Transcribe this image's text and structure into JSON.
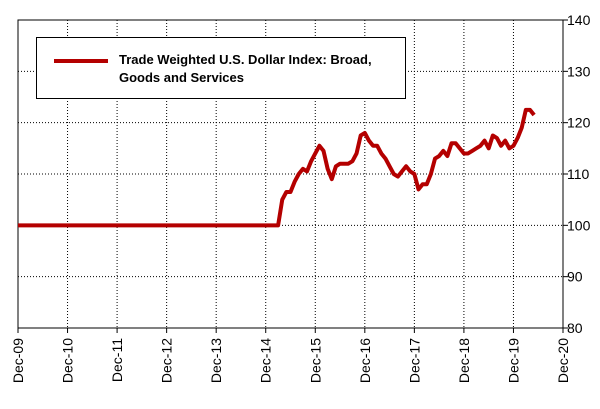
{
  "chart_data": {
    "type": "line",
    "series": [
      {
        "name": "Trade Weighted U.S. Dollar Index: Broad, Goods and Services",
        "color": "#b40000",
        "x": [
          "2009-12",
          "2015-03",
          "2015-04",
          "2015-05",
          "2015-06",
          "2015-07",
          "2015-08",
          "2015-09",
          "2015-10",
          "2015-11",
          "2015-12",
          "2016-01",
          "2016-02",
          "2016-03",
          "2016-04",
          "2016-05",
          "2016-06",
          "2016-07",
          "2016-08",
          "2016-09",
          "2016-10",
          "2016-11",
          "2016-12",
          "2017-01",
          "2017-02",
          "2017-03",
          "2017-04",
          "2017-05",
          "2017-06",
          "2017-07",
          "2017-08",
          "2017-09",
          "2017-10",
          "2017-11",
          "2017-12",
          "2018-01",
          "2018-02",
          "2018-03",
          "2018-04",
          "2018-05",
          "2018-06",
          "2018-07",
          "2018-08",
          "2018-09",
          "2018-10",
          "2018-11",
          "2018-12",
          "2019-01",
          "2019-02",
          "2019-03",
          "2019-04",
          "2019-05",
          "2019-06",
          "2019-07",
          "2019-08",
          "2019-09",
          "2019-10",
          "2019-11",
          "2019-12",
          "2020-01",
          "2020-02",
          "2020-03",
          "2020-04",
          "2020-05"
        ],
        "values": [
          100,
          100,
          105,
          106.5,
          106.5,
          108.5,
          110,
          111,
          110.5,
          112.5,
          114,
          115.5,
          114.5,
          111,
          109,
          111.5,
          112,
          112,
          112,
          112.5,
          114,
          117.5,
          118,
          116.5,
          115.5,
          115.5,
          114,
          113,
          111.5,
          110,
          109.5,
          110.5,
          111.5,
          110.5,
          110,
          107,
          108,
          108,
          110,
          113,
          113.5,
          114.5,
          113.5,
          116,
          116,
          115,
          114,
          114,
          114.5,
          115,
          115.5,
          116.5,
          115,
          117.5,
          117,
          115.5,
          116.5,
          115,
          115.5,
          117,
          119,
          122.5,
          122.5,
          121.5
        ]
      }
    ],
    "xlim": [
      "2009-12",
      "2020-12"
    ],
    "xticks": [
      {
        "value": "2009-12",
        "label": "Dec-09"
      },
      {
        "value": "2010-12",
        "label": "Dec-10"
      },
      {
        "value": "2011-12",
        "label": "Dec-11"
      },
      {
        "value": "2012-12",
        "label": "Dec-12"
      },
      {
        "value": "2013-12",
        "label": "Dec-13"
      },
      {
        "value": "2014-12",
        "label": "Dec-14"
      },
      {
        "value": "2015-12",
        "label": "Dec-15"
      },
      {
        "value": "2016-12",
        "label": "Dec-16"
      },
      {
        "value": "2017-12",
        "label": "Dec-17"
      },
      {
        "value": "2018-12",
        "label": "Dec-18"
      },
      {
        "value": "2019-12",
        "label": "Dec-19"
      },
      {
        "value": "2020-12",
        "label": "Dec-20"
      }
    ],
    "ylim": [
      80,
      140
    ],
    "yticks": [
      80,
      90,
      100,
      110,
      120,
      130,
      140
    ],
    "grid": true,
    "legend": "upper left"
  }
}
